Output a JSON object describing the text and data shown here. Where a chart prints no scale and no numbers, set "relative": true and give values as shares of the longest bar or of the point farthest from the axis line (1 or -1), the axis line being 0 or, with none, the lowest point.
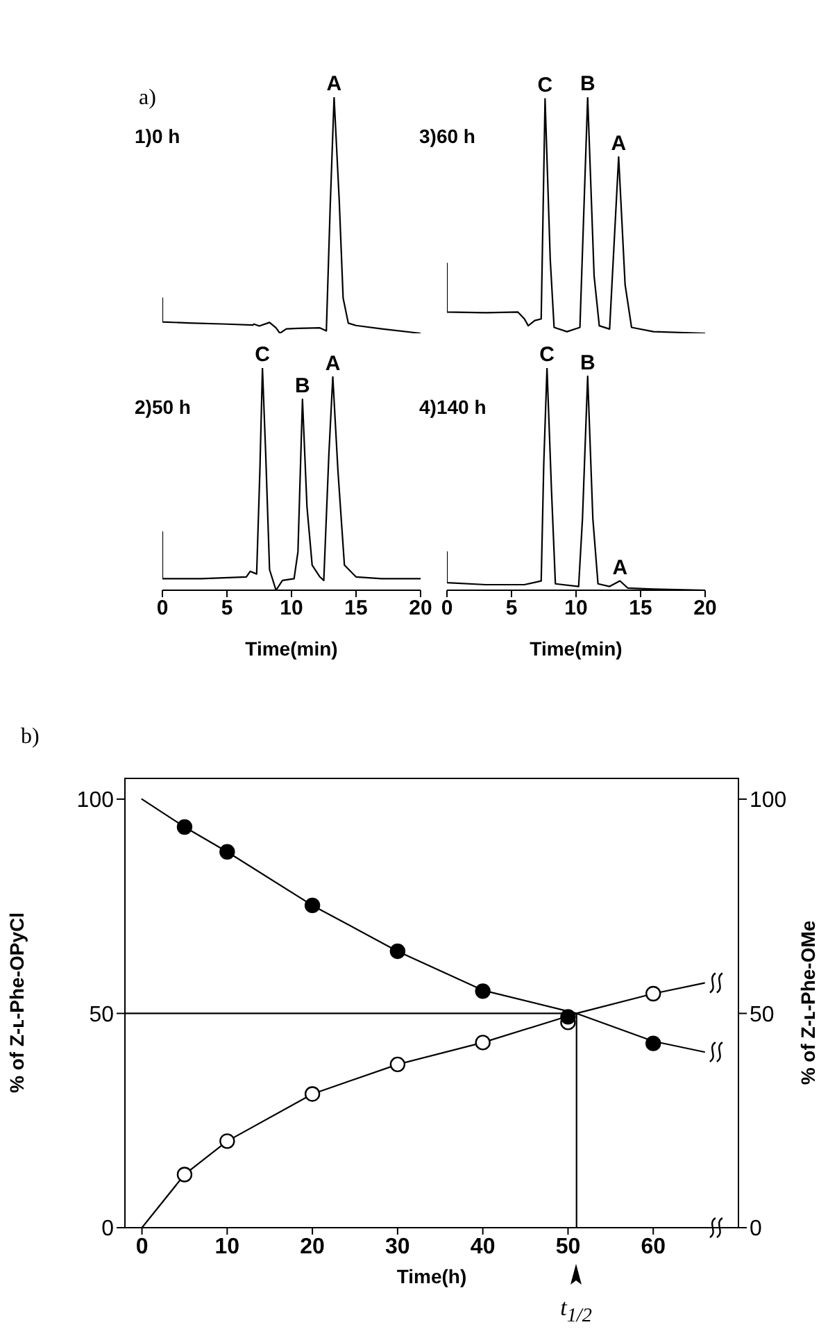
{
  "chart_data": [
    {
      "type": "line",
      "title": "a)",
      "relative": true,
      "xlim": [
        0,
        20
      ],
      "xticks": [
        0,
        5,
        10,
        15,
        20
      ],
      "tick_labels": false,
      "annotations": [
        "1)0 h",
        {
          "text": "A",
          "x": 13.3,
          "y": 1
        }
      ],
      "series": [
        {
          "color": "#000000",
          "x": [
            0,
            0,
            2,
            5,
            7,
            7.1,
            7.5,
            8.3,
            8.8,
            9.1,
            9.6,
            10.5,
            12.2,
            12.7,
            13.0,
            13.3,
            13.7,
            14.0,
            14.4,
            15,
            17,
            20
          ],
          "values": [
            0.149,
            0.048,
            0.044,
            0.039,
            0.035,
            0.039,
            0.031,
            0.046,
            0.023,
            0,
            0.019,
            0.021,
            0.023,
            0.01,
            0.54,
            1,
            0.56,
            0.149,
            0.043,
            0.033,
            0.019,
            0
          ]
        }
      ]
    },
    {
      "type": "line",
      "relative": true,
      "xlim": [
        0,
        20
      ],
      "xticks": [
        0,
        5,
        10,
        15,
        20
      ],
      "tick_labels": false,
      "annotations": [
        "3)60 h",
        {
          "text": "C",
          "x": 7.6,
          "y": 0.993
        },
        {
          "text": "B",
          "x": 10.9,
          "y": 1
        },
        {
          "text": "A",
          "x": 13.3,
          "y": 0.747
        }
      ],
      "series": [
        {
          "color": "#000000",
          "x": [
            0,
            0,
            3,
            5.5,
            6.0,
            6.3,
            6.8,
            7.3,
            7.6,
            8.0,
            8.3,
            9.3,
            10.3,
            10.9,
            11.4,
            11.8,
            12.6,
            13.3,
            13.8,
            14.3,
            16,
            20
          ],
          "values": [
            0.296,
            0.09,
            0.087,
            0.09,
            0.061,
            0.032,
            0.054,
            0.061,
            0.993,
            0.314,
            0.025,
            0.007,
            0.025,
            1,
            0.242,
            0.032,
            0.018,
            0.747,
            0.206,
            0.025,
            0.007,
            0
          ]
        }
      ]
    },
    {
      "type": "line",
      "relative": true,
      "xlabel": "Time(min)",
      "xlim": [
        0,
        20
      ],
      "xticks": [
        0,
        5,
        10,
        15,
        20
      ],
      "tick_labels": "x",
      "annotations": [
        "2)50 h",
        {
          "text": "C",
          "x": 7.75,
          "y": 1
        },
        {
          "text": "B",
          "x": 10.85,
          "y": 0.859
        },
        {
          "text": "A",
          "x": 13.2,
          "y": 0.96
        }
      ],
      "series": [
        {
          "color": "#000000",
          "x": [
            0,
            0,
            3,
            6.5,
            6.8,
            7.3,
            7.55,
            7.75,
            8.0,
            8.3,
            8.8,
            9.3,
            10.2,
            10.5,
            10.85,
            11.2,
            11.6,
            12.2,
            12.5,
            12.9,
            13.2,
            13.6,
            14.1,
            15,
            17,
            20
          ],
          "values": [
            0.262,
            0.052,
            0.052,
            0.06,
            0.085,
            0.073,
            0.536,
            1,
            0.617,
            0.093,
            0,
            0.044,
            0.052,
            0.173,
            0.859,
            0.375,
            0.113,
            0.06,
            0.044,
            0.617,
            0.96,
            0.536,
            0.113,
            0.06,
            0.052,
            0.052
          ]
        }
      ]
    },
    {
      "type": "line",
      "relative": true,
      "xlabel": "Time(min)",
      "xlim": [
        0,
        20
      ],
      "xticks": [
        0,
        5,
        10,
        15,
        20
      ],
      "tick_labels": "x",
      "annotations": [
        "4)140 h",
        {
          "text": "C",
          "x": 7.75,
          "y": 1
        },
        {
          "text": "B",
          "x": 10.9,
          "y": 0.963
        },
        {
          "text": "A",
          "x": 13.4,
          "y": 0.042
        }
      ],
      "series": [
        {
          "color": "#000000",
          "x": [
            0,
            0,
            3,
            6,
            7.3,
            7.5,
            7.75,
            8.1,
            8.4,
            10.2,
            10.5,
            10.9,
            11.3,
            11.7,
            12.6,
            13.4,
            14.0,
            16,
            20
          ],
          "values": [
            0.172,
            0.034,
            0.025,
            0.025,
            0.042,
            0.57,
            1,
            0.447,
            0.029,
            0.017,
            0.324,
            0.963,
            0.324,
            0.029,
            0.017,
            0.042,
            0.01,
            0.005,
            0
          ]
        }
      ]
    },
    {
      "type": "line",
      "title": "b)",
      "xlabel": "Time(h)",
      "ylabel": "% of Z-ʟ-Phe-OPyCl",
      "y2label": "% of Z-ʟ-Phe-OMe",
      "xlim": [
        -2,
        70
      ],
      "xticks": [
        0,
        10,
        20,
        30,
        40,
        50,
        60
      ],
      "ylim": [
        0,
        105
      ],
      "yticks": [
        0,
        50,
        100
      ],
      "y2lim": [
        0,
        105
      ],
      "y2ticks": [
        0,
        50,
        100
      ],
      "annotations": [
        "t$_{1/2}$"
      ],
      "series": [
        {
          "color": "#000000",
          "x": [
            0,
            5,
            10,
            20,
            30,
            40,
            51,
            60,
            66
          ],
          "values": [
            100,
            93.5,
            87.7,
            75.2,
            64.5,
            55.4,
            50,
            43.5,
            41
          ]
        },
        {
          "color": "#000000",
          "axis": "y2",
          "x": [
            0,
            5,
            10,
            20,
            30,
            40,
            51,
            60,
            66
          ],
          "values": [
            0,
            12.4,
            20.2,
            31.2,
            38.1,
            43.2,
            50,
            54.6,
            57.1
          ]
        },
        {
          "color": "#000000",
          "x": [
            -2,
            51
          ],
          "values": [
            50,
            50
          ]
        },
        {
          "color": "#000000",
          "x": [
            51,
            51
          ],
          "values": [
            0,
            50
          ]
        },
        {
          "type": "scatter",
          "marker": "circle",
          "color": "#ffffff",
          "axis": "y2",
          "x": [
            5,
            10,
            20,
            30,
            40,
            50,
            60
          ],
          "values": [
            12.4,
            20.2,
            31.2,
            38.1,
            43.2,
            47.9,
            54.6
          ]
        },
        {
          "type": "scatter",
          "marker": "circle",
          "color": "#000000",
          "x": [
            5,
            10,
            20,
            30,
            40,
            50,
            60
          ],
          "values": [
            93.5,
            87.7,
            75.2,
            64.5,
            55.2,
            49.2,
            43.0
          ]
        }
      ]
    }
  ]
}
